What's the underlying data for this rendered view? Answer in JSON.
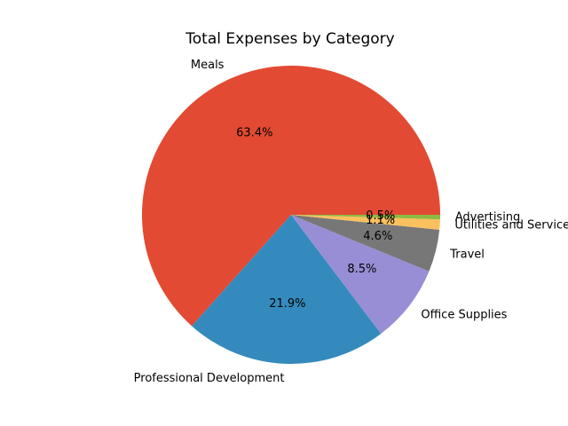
{
  "chart_data": {
    "type": "pie",
    "title": "Total Expenses by Category",
    "start_angle_deg": 0,
    "direction": "counterclockwise",
    "slices": [
      {
        "label": "Meals",
        "percent": 63.4,
        "percent_label": "63.4%",
        "color": "#E24A33"
      },
      {
        "label": "Professional Development",
        "percent": 21.9,
        "percent_label": "21.9%",
        "color": "#348ABD"
      },
      {
        "label": "Office Supplies",
        "percent": 8.5,
        "percent_label": "8.5%",
        "color": "#988ED5"
      },
      {
        "label": "Travel",
        "percent": 4.6,
        "percent_label": "4.6%",
        "color": "#777777"
      },
      {
        "label": "Utilities and Services",
        "percent": 1.1,
        "percent_label": "1.1%",
        "color": "#FBC15E"
      },
      {
        "label": "Advertising",
        "percent": 0.5,
        "percent_label": "0.5%",
        "color": "#8EBA42"
      }
    ]
  }
}
